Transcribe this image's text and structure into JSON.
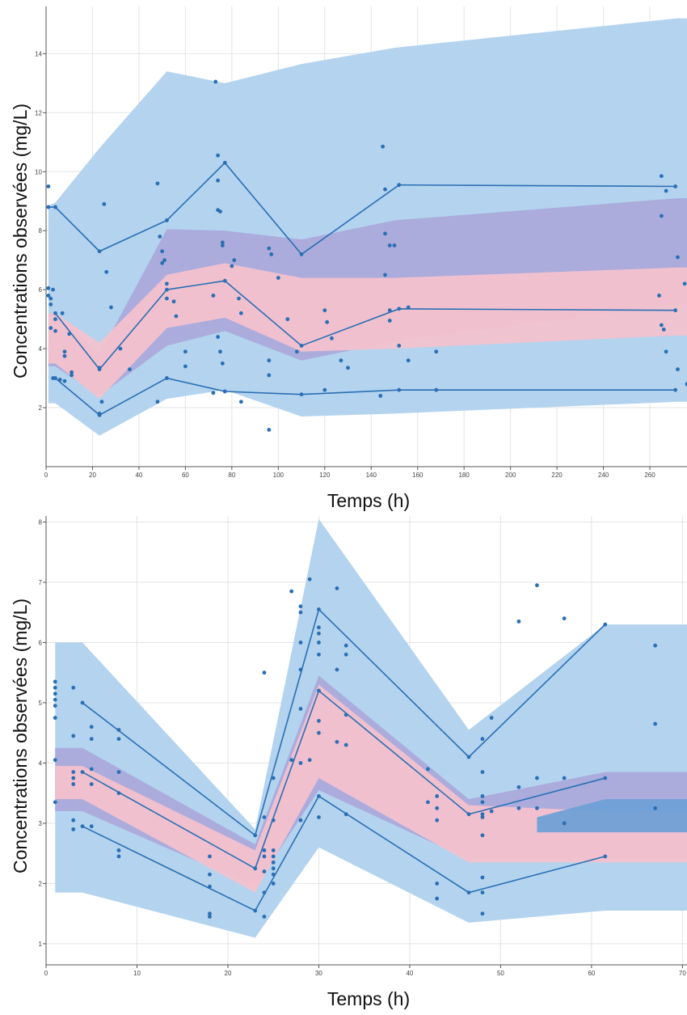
{
  "colors": {
    "blue_band": "#b3d3ef",
    "purple_band": "#aaa8da",
    "pink_band": "#f5c1cd",
    "deep_band": "#6c9fd6",
    "line": "#2a6fb3",
    "point": "#2a6fb3",
    "grid": "#e3e3e3"
  },
  "chart_data": [
    {
      "type": "line",
      "xlabel": "Temps (h)",
      "ylabel": "Concentrations observées (mg/L)",
      "xlim": [
        0,
        276
      ],
      "ylim": [
        0,
        15.6
      ],
      "grid": true,
      "xticks": [
        0,
        20,
        40,
        60,
        80,
        100,
        120,
        140,
        160,
        180,
        200,
        220,
        240,
        260
      ],
      "yticks": [
        2,
        4,
        6,
        8,
        10,
        12,
        14
      ],
      "bands": [
        {
          "color": "blue",
          "x": [
            1,
            4,
            23,
            52,
            77,
            110,
            150,
            272,
            276
          ],
          "lower": [
            2.15,
            2.15,
            1.05,
            2.3,
            2.6,
            1.7,
            1.8,
            2.2,
            2.2
          ],
          "upper": [
            8.85,
            8.95,
            10.8,
            13.4,
            13.0,
            13.65,
            14.2,
            15.2,
            15.2
          ]
        },
        {
          "color": "purple",
          "x": [
            1,
            4,
            23,
            52,
            77,
            110,
            150,
            272,
            276
          ],
          "lower": [
            3.4,
            3.4,
            2.4,
            4.1,
            4.6,
            3.6,
            4.25,
            5.5,
            5.5
          ],
          "upper": [
            5.2,
            5.2,
            3.8,
            8.05,
            8.0,
            7.7,
            8.35,
            9.1,
            9.1
          ]
        },
        {
          "color": "pink",
          "x": [
            1,
            4,
            23,
            52,
            77,
            110,
            150,
            272,
            276
          ],
          "lower": [
            3.5,
            3.5,
            2.3,
            4.7,
            5.05,
            3.9,
            4.0,
            4.45,
            4.45
          ],
          "upper": [
            5.2,
            5.2,
            4.2,
            6.5,
            6.9,
            6.4,
            6.4,
            6.75,
            6.75
          ]
        }
      ],
      "series": [
        {
          "x": [
            1,
            4,
            23,
            52,
            77,
            110,
            152,
            271
          ],
          "values": [
            8.8,
            8.8,
            7.3,
            8.35,
            10.3,
            7.2,
            9.55,
            9.5
          ]
        },
        {
          "x": [
            4,
            23,
            52,
            77,
            110,
            152,
            271
          ],
          "values": [
            5.2,
            3.3,
            6.0,
            6.3,
            4.1,
            5.35,
            5.3
          ]
        },
        {
          "x": [
            4,
            23,
            52,
            77,
            110,
            152,
            271
          ],
          "values": [
            3.0,
            1.75,
            3.0,
            2.55,
            2.45,
            2.6,
            2.6
          ]
        }
      ],
      "points": [
        [
          1,
          9.5
        ],
        [
          1,
          8.8
        ],
        [
          4,
          8.8
        ],
        [
          1,
          6.05
        ],
        [
          1,
          5.8
        ],
        [
          2,
          5.7
        ],
        [
          2,
          5.5
        ],
        [
          3,
          6.0
        ],
        [
          4,
          5.0
        ],
        [
          4,
          4.6
        ],
        [
          2,
          4.7
        ],
        [
          7,
          5.2
        ],
        [
          8,
          3.9
        ],
        [
          8,
          3.75
        ],
        [
          10,
          4.5
        ],
        [
          11,
          3.2
        ],
        [
          11,
          3.1
        ],
        [
          3,
          3.0
        ],
        [
          6,
          2.95
        ],
        [
          8,
          2.9
        ],
        [
          23,
          3.35
        ],
        [
          23,
          1.8
        ],
        [
          23,
          1.75
        ],
        [
          24,
          2.2
        ],
        [
          25,
          8.9
        ],
        [
          26,
          6.6
        ],
        [
          28,
          5.4
        ],
        [
          32,
          4.0
        ],
        [
          36,
          3.3
        ],
        [
          48,
          9.6
        ],
        [
          49,
          7.8
        ],
        [
          50,
          7.3
        ],
        [
          50,
          6.9
        ],
        [
          51,
          7.0
        ],
        [
          52,
          6.2
        ],
        [
          52,
          5.7
        ],
        [
          55,
          5.6
        ],
        [
          56,
          5.1
        ],
        [
          60,
          3.9
        ],
        [
          60,
          3.4
        ],
        [
          48,
          2.2
        ],
        [
          73,
          13.05
        ],
        [
          74,
          10.55
        ],
        [
          74,
          9.7
        ],
        [
          74,
          8.7
        ],
        [
          75,
          8.65
        ],
        [
          72,
          5.8
        ],
        [
          76,
          7.6
        ],
        [
          76,
          7.5
        ],
        [
          81,
          7.0
        ],
        [
          80,
          6.8
        ],
        [
          83,
          5.7
        ],
        [
          84,
          5.2
        ],
        [
          74,
          4.4
        ],
        [
          75,
          3.9
        ],
        [
          76,
          3.5
        ],
        [
          72,
          2.5
        ],
        [
          77,
          2.55
        ],
        [
          84,
          2.2
        ],
        [
          96,
          7.4
        ],
        [
          97,
          7.2
        ],
        [
          100,
          6.4
        ],
        [
          104,
          5.0
        ],
        [
          96,
          3.6
        ],
        [
          96,
          3.1
        ],
        [
          96,
          1.25
        ],
        [
          108,
          3.9
        ],
        [
          120,
          5.3
        ],
        [
          121,
          4.9
        ],
        [
          123,
          4.35
        ],
        [
          127,
          3.6
        ],
        [
          130,
          3.35
        ],
        [
          120,
          2.6
        ],
        [
          145,
          10.85
        ],
        [
          146,
          9.4
        ],
        [
          146,
          7.9
        ],
        [
          148,
          7.5
        ],
        [
          146,
          6.5
        ],
        [
          150,
          7.5
        ],
        [
          148,
          5.3
        ],
        [
          148,
          4.95
        ],
        [
          152,
          4.1
        ],
        [
          156,
          5.4
        ],
        [
          156,
          3.6
        ],
        [
          144,
          2.4
        ],
        [
          168,
          3.9
        ],
        [
          168,
          2.6
        ],
        [
          265,
          9.85
        ],
        [
          267,
          9.35
        ],
        [
          265,
          8.5
        ],
        [
          264,
          5.8
        ],
        [
          265,
          4.8
        ],
        [
          266,
          4.65
        ],
        [
          267,
          3.9
        ],
        [
          272,
          7.1
        ],
        [
          272,
          3.3
        ],
        [
          275,
          6.2
        ],
        [
          276,
          2.8
        ]
      ]
    },
    {
      "type": "line",
      "xlabel": "Temps (h)",
      "ylabel": "Concentrations observées (mg/L)",
      "xlim": [
        0,
        70.5
      ],
      "ylim": [
        0.65,
        8.1
      ],
      "grid": true,
      "xticks": [
        0,
        10,
        20,
        30,
        40,
        50,
        60,
        70
      ],
      "yticks": [
        1,
        2,
        3,
        4,
        5,
        6,
        7,
        8
      ],
      "bands": [
        {
          "color": "blue",
          "x": [
            1,
            4,
            23,
            30,
            46.5,
            61.5,
            70.5
          ],
          "lower": [
            1.85,
            1.85,
            1.1,
            2.6,
            1.35,
            1.55,
            1.55
          ],
          "upper": [
            6.0,
            6.0,
            2.9,
            8.05,
            4.55,
            6.3,
            6.3
          ]
        },
        {
          "color": "purple",
          "x": [
            1,
            4,
            23,
            30,
            46.5,
            61.5,
            70.5
          ],
          "lower": [
            3.2,
            3.2,
            1.95,
            3.55,
            2.4,
            2.4,
            2.4
          ],
          "upper": [
            4.25,
            4.25,
            2.65,
            5.45,
            3.4,
            3.85,
            3.85
          ]
        },
        {
          "color": "pink",
          "x": [
            1,
            4,
            23,
            30,
            46.5,
            61.5,
            70.5
          ],
          "lower": [
            3.4,
            3.4,
            1.85,
            3.75,
            2.35,
            2.35,
            2.35
          ],
          "upper": [
            3.95,
            3.95,
            2.55,
            5.3,
            3.3,
            3.2,
            3.2
          ]
        },
        {
          "color": "deep",
          "x": [
            54,
            61.5,
            70.5
          ],
          "lower": [
            2.85,
            2.85,
            2.85
          ],
          "upper": [
            3.1,
            3.4,
            3.4
          ]
        }
      ],
      "series": [
        {
          "x": [
            4,
            23,
            30,
            46.5,
            61.5
          ],
          "values": [
            5.0,
            2.8,
            6.55,
            4.1,
            6.3
          ]
        },
        {
          "x": [
            4,
            23,
            30,
            46.5,
            61.5
          ],
          "values": [
            3.85,
            2.25,
            5.2,
            3.15,
            3.75
          ]
        },
        {
          "x": [
            4,
            23,
            30,
            46.5,
            61.5
          ],
          "values": [
            2.95,
            1.55,
            3.45,
            1.85,
            2.45
          ]
        }
      ],
      "points": [
        [
          1,
          5.35
        ],
        [
          1,
          5.25
        ],
        [
          1,
          5.15
        ],
        [
          1,
          5.05
        ],
        [
          1,
          4.95
        ],
        [
          1,
          4.75
        ],
        [
          1,
          4.05
        ],
        [
          1,
          3.35
        ],
        [
          3,
          5.25
        ],
        [
          3,
          4.45
        ],
        [
          3,
          3.85
        ],
        [
          3,
          3.75
        ],
        [
          3,
          3.65
        ],
        [
          3,
          3.05
        ],
        [
          3,
          2.9
        ],
        [
          5,
          4.6
        ],
        [
          5,
          4.4
        ],
        [
          5,
          3.9
        ],
        [
          5,
          3.65
        ],
        [
          5,
          2.95
        ],
        [
          8,
          4.55
        ],
        [
          8,
          4.4
        ],
        [
          8,
          3.85
        ],
        [
          8,
          3.5
        ],
        [
          8,
          2.55
        ],
        [
          8,
          2.45
        ],
        [
          18,
          2.45
        ],
        [
          18,
          2.15
        ],
        [
          18,
          1.95
        ],
        [
          18,
          1.5
        ],
        [
          18,
          1.45
        ],
        [
          24,
          5.5
        ],
        [
          24,
          3.1
        ],
        [
          24,
          2.55
        ],
        [
          24,
          2.45
        ],
        [
          24,
          2.2
        ],
        [
          24,
          1.85
        ],
        [
          24,
          1.45
        ],
        [
          25,
          3.75
        ],
        [
          25,
          3.05
        ],
        [
          25,
          2.55
        ],
        [
          25,
          2.45
        ],
        [
          25,
          2.35
        ],
        [
          25,
          2.25
        ],
        [
          25,
          2.15
        ],
        [
          25,
          2.0
        ],
        [
          27,
          6.85
        ],
        [
          27,
          4.05
        ],
        [
          28,
          6.6
        ],
        [
          28,
          6.5
        ],
        [
          28,
          6.0
        ],
        [
          28,
          5.55
        ],
        [
          28,
          4.9
        ],
        [
          28,
          4.0
        ],
        [
          28,
          3.05
        ],
        [
          29,
          7.05
        ],
        [
          29,
          4.05
        ],
        [
          30,
          6.25
        ],
        [
          30,
          6.15
        ],
        [
          30,
          6.0
        ],
        [
          30,
          5.8
        ],
        [
          30,
          4.7
        ],
        [
          30,
          4.5
        ],
        [
          30,
          3.1
        ],
        [
          32,
          6.9
        ],
        [
          32,
          5.55
        ],
        [
          32,
          4.35
        ],
        [
          33,
          5.95
        ],
        [
          33,
          5.8
        ],
        [
          33,
          4.8
        ],
        [
          33,
          4.3
        ],
        [
          33,
          3.15
        ],
        [
          42,
          3.9
        ],
        [
          42,
          3.35
        ],
        [
          43,
          2.0
        ],
        [
          43,
          1.75
        ],
        [
          43,
          3.45
        ],
        [
          43,
          3.25
        ],
        [
          43,
          3.05
        ],
        [
          48,
          4.4
        ],
        [
          48,
          3.85
        ],
        [
          48,
          3.45
        ],
        [
          48,
          3.35
        ],
        [
          48,
          3.15
        ],
        [
          48,
          3.1
        ],
        [
          48,
          2.8
        ],
        [
          48,
          2.1
        ],
        [
          48,
          1.85
        ],
        [
          48,
          1.5
        ],
        [
          49,
          4.75
        ],
        [
          49,
          3.2
        ],
        [
          52,
          6.35
        ],
        [
          52,
          3.6
        ],
        [
          52,
          3.25
        ],
        [
          54,
          6.95
        ],
        [
          54,
          3.75
        ],
        [
          54,
          3.25
        ],
        [
          57,
          6.4
        ],
        [
          57,
          3.75
        ],
        [
          57,
          3.0
        ],
        [
          67,
          5.95
        ],
        [
          67,
          4.65
        ],
        [
          67,
          3.25
        ]
      ]
    }
  ]
}
